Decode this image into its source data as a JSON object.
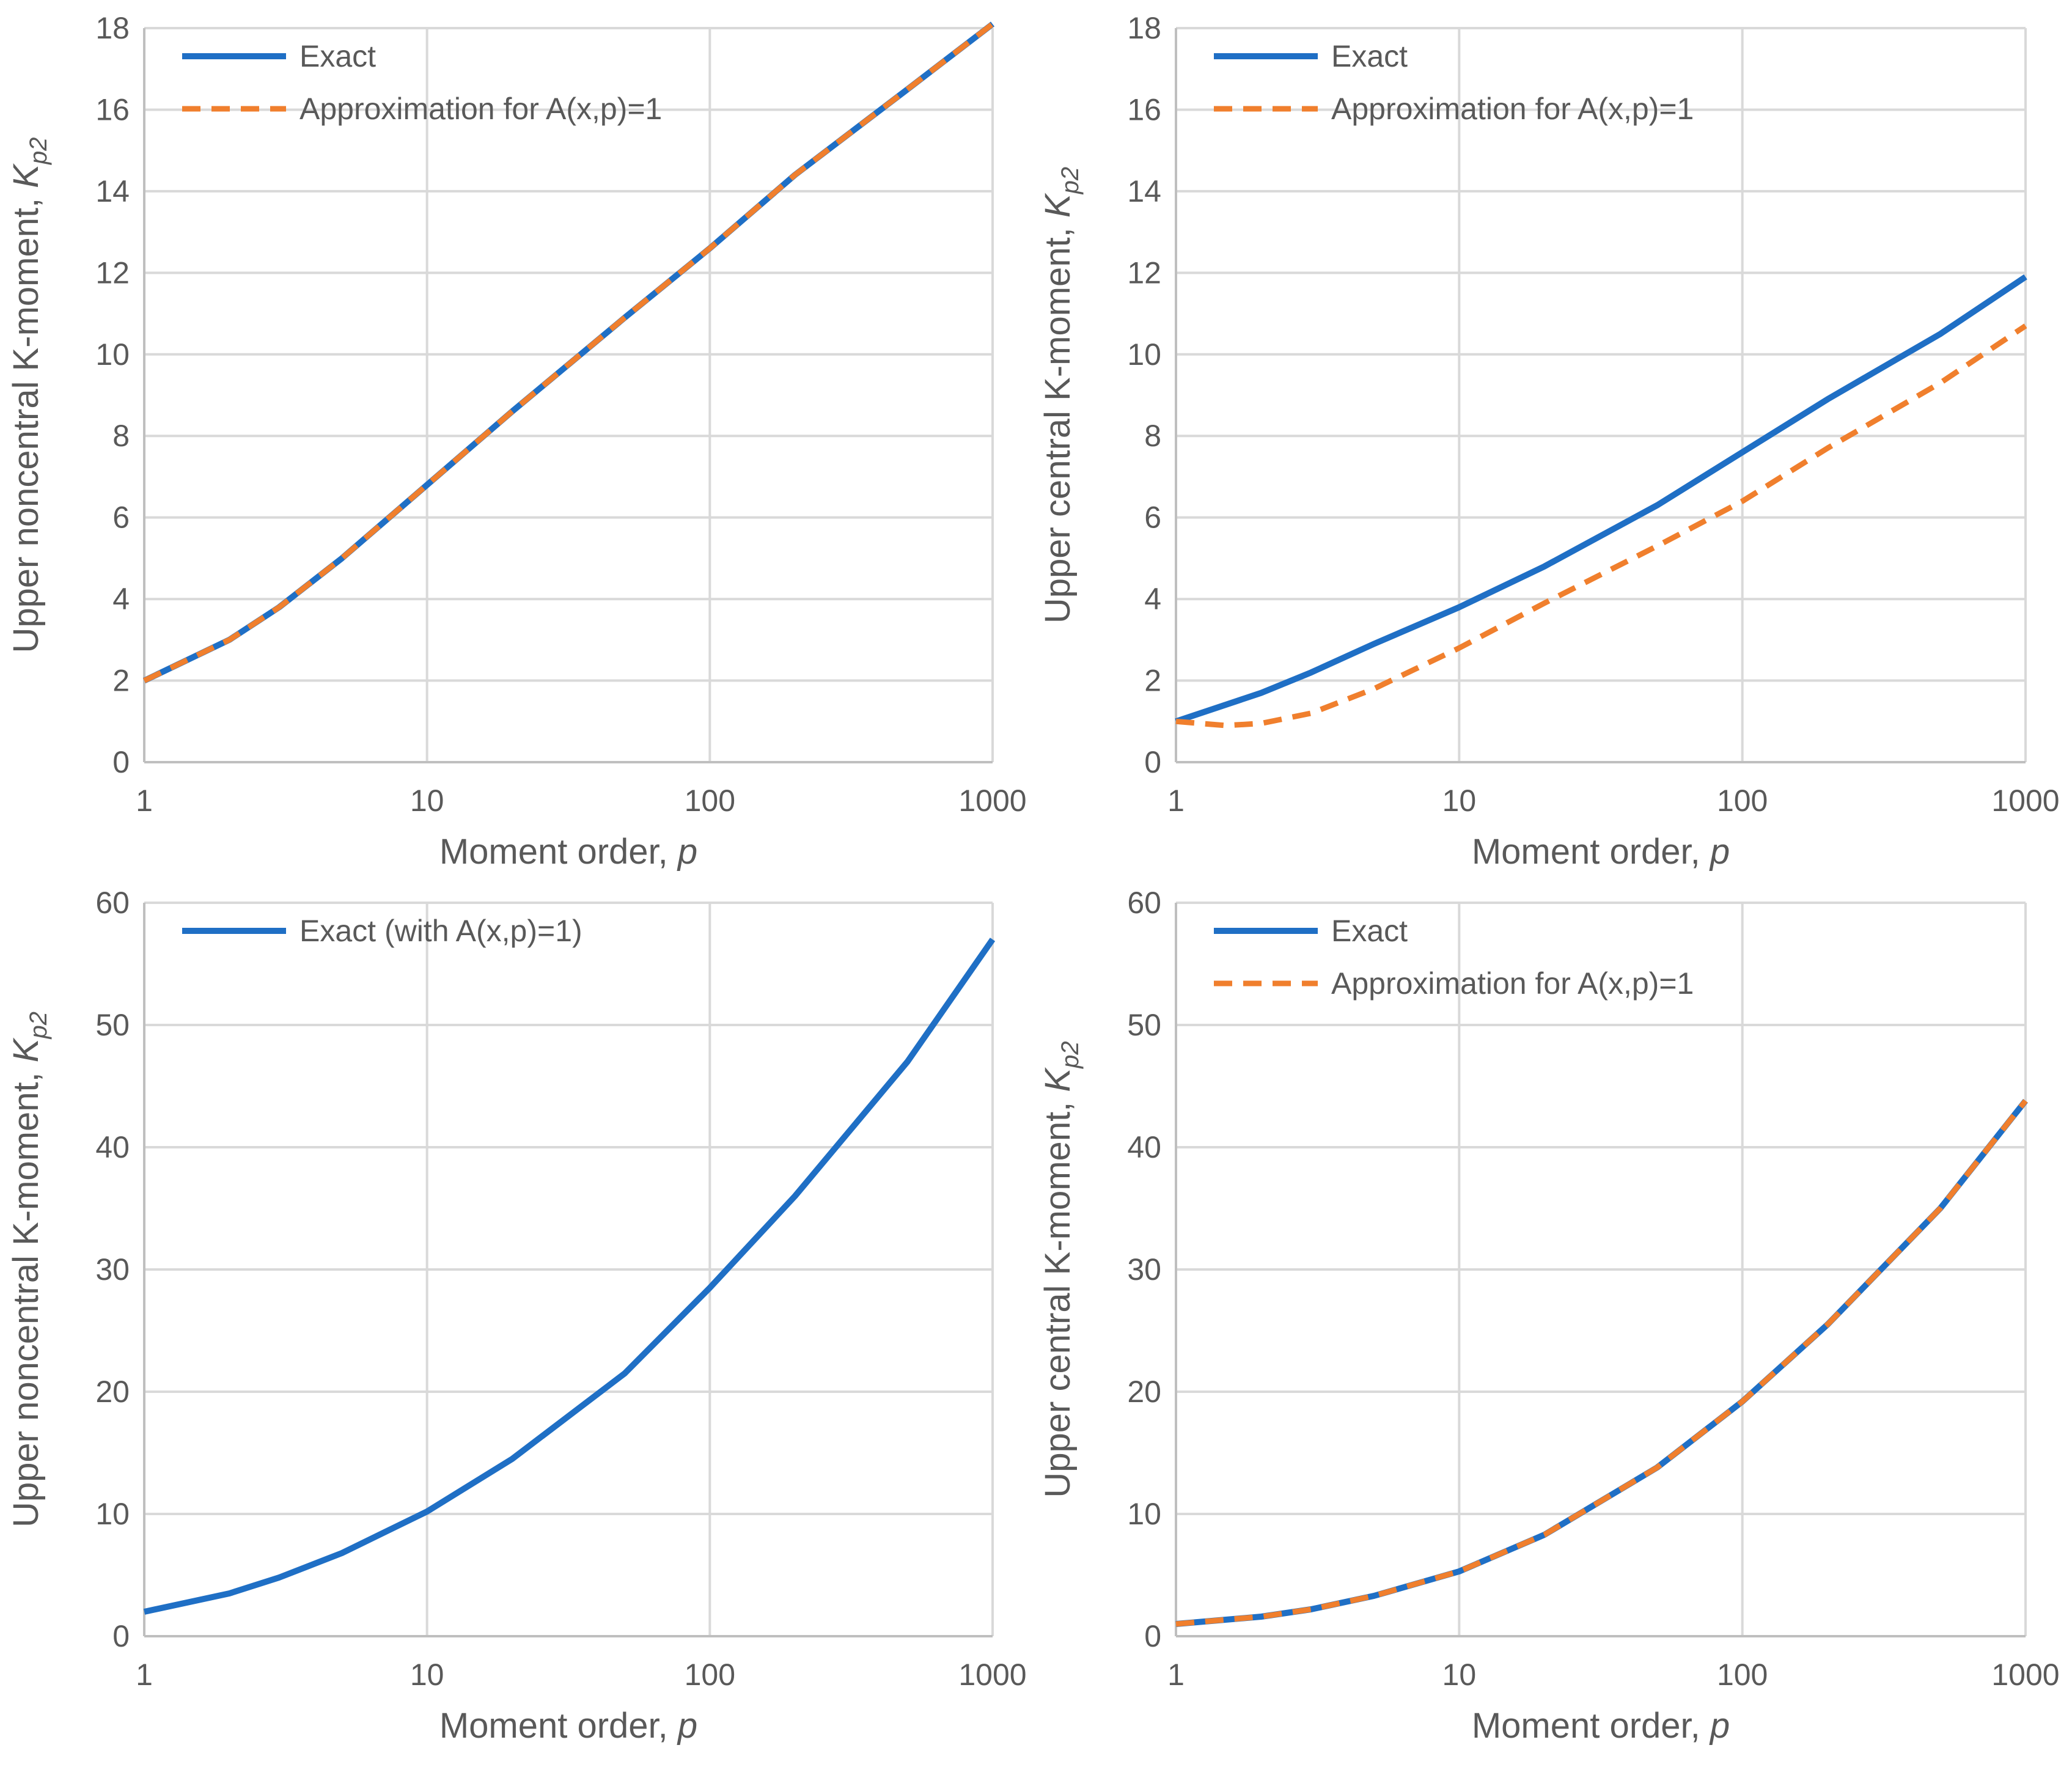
{
  "figure": "Four-panel K-moment chart",
  "chart_data": [
    {
      "id": "top-left",
      "type": "line",
      "xscale": "log",
      "xlim": [
        1,
        1000
      ],
      "ylim": [
        0,
        18
      ],
      "xticks": [
        "1",
        "10",
        "100",
        "1000"
      ],
      "yticks": [
        "0",
        "2",
        "4",
        "6",
        "8",
        "10",
        "12",
        "14",
        "16",
        "18"
      ],
      "xlabel": "Moment order, ",
      "xlabel_var": "p",
      "ylabel": "Upper noncentral K-moment, ",
      "ylabel_var": "K",
      "ylabel_sub": "p2",
      "legend_position": "top-left",
      "series": [
        {
          "name": "Exact",
          "style": "solid",
          "color": "#1f6fc5",
          "x": [
            1,
            2,
            3,
            5,
            10,
            20,
            50,
            100,
            200,
            500,
            1000
          ],
          "values": [
            2.0,
            3.0,
            3.8,
            5.0,
            6.8,
            8.6,
            10.9,
            12.6,
            14.4,
            16.5,
            18.1
          ]
        },
        {
          "name": "Approximation for A(x,p)=1",
          "style": "dashed",
          "color": "#f07f2d",
          "x": [
            1,
            2,
            3,
            5,
            10,
            20,
            50,
            100,
            200,
            500,
            1000
          ],
          "values": [
            2.0,
            3.0,
            3.8,
            5.0,
            6.8,
            8.6,
            10.9,
            12.6,
            14.4,
            16.5,
            18.1
          ]
        }
      ]
    },
    {
      "id": "top-right",
      "type": "line",
      "xscale": "log",
      "xlim": [
        1,
        1000
      ],
      "ylim": [
        0,
        18
      ],
      "xticks": [
        "1",
        "10",
        "100",
        "1000"
      ],
      "yticks": [
        "0",
        "2",
        "4",
        "6",
        "8",
        "10",
        "12",
        "14",
        "16",
        "18"
      ],
      "xlabel": "Moment order, ",
      "xlabel_var": "p",
      "ylabel": "Upper central K-moment, ",
      "ylabel_var": "K",
      "ylabel_sub": "p2",
      "legend_position": "top-left",
      "series": [
        {
          "name": "Exact",
          "style": "solid",
          "color": "#1f6fc5",
          "x": [
            1,
            2,
            3,
            5,
            10,
            20,
            50,
            100,
            200,
            500,
            1000
          ],
          "values": [
            1.0,
            1.7,
            2.2,
            2.9,
            3.8,
            4.8,
            6.3,
            7.6,
            8.9,
            10.5,
            11.9
          ]
        },
        {
          "name": "Approximation for A(x,p)=1",
          "style": "dashed",
          "color": "#f07f2d",
          "x": [
            1,
            1.5,
            2,
            3,
            5,
            10,
            20,
            50,
            100,
            200,
            500,
            1000
          ],
          "values": [
            1.0,
            0.9,
            0.95,
            1.2,
            1.8,
            2.8,
            3.9,
            5.3,
            6.4,
            7.7,
            9.3,
            10.7
          ]
        }
      ]
    },
    {
      "id": "bottom-left",
      "type": "line",
      "xscale": "log",
      "xlim": [
        1,
        1000
      ],
      "ylim": [
        0,
        60
      ],
      "xticks": [
        "1",
        "10",
        "100",
        "1000"
      ],
      "yticks": [
        "0",
        "10",
        "20",
        "30",
        "40",
        "50",
        "60"
      ],
      "xlabel": "Moment order, ",
      "xlabel_var": "p",
      "ylabel": "Upper noncentral K-moment, ",
      "ylabel_var": "K",
      "ylabel_sub": "p2",
      "legend_position": "top-left",
      "series": [
        {
          "name": "Exact (with A(x,p)=1)",
          "style": "solid",
          "color": "#1f6fc5",
          "x": [
            1,
            2,
            3,
            5,
            10,
            20,
            50,
            100,
            200,
            500,
            1000
          ],
          "values": [
            2.0,
            3.5,
            4.8,
            6.8,
            10.2,
            14.5,
            21.5,
            28.5,
            36.0,
            47.0,
            57.0
          ]
        }
      ]
    },
    {
      "id": "bottom-right",
      "type": "line",
      "xscale": "log",
      "xlim": [
        1,
        1000
      ],
      "ylim": [
        0,
        60
      ],
      "xticks": [
        "1",
        "10",
        "100",
        "1000"
      ],
      "yticks": [
        "0",
        "10",
        "20",
        "30",
        "40",
        "50",
        "60"
      ],
      "xlabel": "Moment order, ",
      "xlabel_var": "p",
      "ylabel": "Upper central K-moment, ",
      "ylabel_var": "K",
      "ylabel_sub": "p2",
      "legend_position": "top-left",
      "series": [
        {
          "name": "Exact",
          "style": "solid",
          "color": "#1f6fc5",
          "x": [
            1,
            2,
            3,
            5,
            10,
            20,
            50,
            100,
            200,
            500,
            1000
          ],
          "values": [
            1.0,
            1.6,
            2.2,
            3.3,
            5.3,
            8.3,
            13.8,
            19.2,
            25.5,
            35.0,
            43.8
          ]
        },
        {
          "name": "Approximation for A(x,p)=1",
          "style": "dashed",
          "color": "#f07f2d",
          "x": [
            1,
            2,
            3,
            5,
            10,
            20,
            50,
            100,
            200,
            500,
            1000
          ],
          "values": [
            1.0,
            1.6,
            2.2,
            3.3,
            5.3,
            8.3,
            13.8,
            19.2,
            25.5,
            35.0,
            43.8
          ]
        }
      ]
    }
  ]
}
